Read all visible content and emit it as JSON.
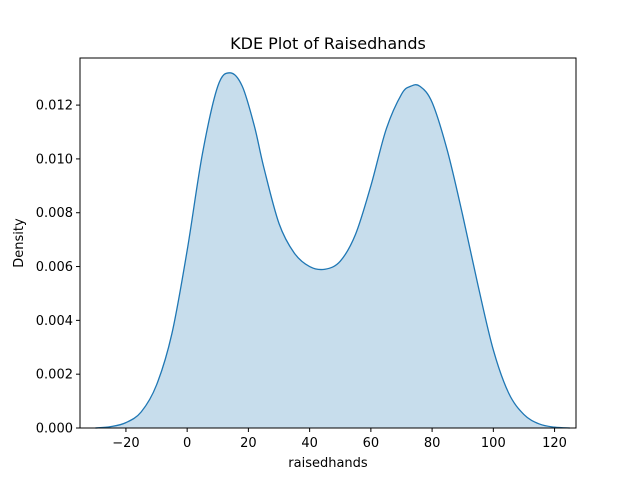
{
  "chart_data": {
    "type": "area",
    "title": "KDE Plot of Raisedhands",
    "xlabel": "raisedhands",
    "ylabel": "Density",
    "xlim": [
      -35,
      127
    ],
    "ylim": [
      0,
      0.01375
    ],
    "xticks": [
      -20,
      0,
      20,
      40,
      60,
      80,
      100,
      120
    ],
    "xtick_labels": [
      "−20",
      "0",
      "20",
      "40",
      "60",
      "80",
      "100",
      "120"
    ],
    "yticks": [
      0.0,
      0.002,
      0.004,
      0.006,
      0.008,
      0.01,
      0.012
    ],
    "ytick_labels": [
      "0.000",
      "0.002",
      "0.004",
      "0.006",
      "0.008",
      "0.010",
      "0.012"
    ],
    "grid": false,
    "line_color": "#1f77b4",
    "fill_color": "#1f77b4",
    "fill_opacity": 0.25,
    "x": [
      -30,
      -25,
      -20,
      -15,
      -10,
      -5,
      0,
      5,
      10,
      14,
      18,
      22,
      25,
      30,
      35,
      40,
      45,
      50,
      55,
      60,
      65,
      70,
      73,
      76,
      80,
      85,
      90,
      95,
      100,
      105,
      110,
      115,
      120,
      125
    ],
    "y": [
      0.0,
      5e-05,
      0.0002,
      0.0006,
      0.0016,
      0.0035,
      0.0066,
      0.0102,
      0.0127,
      0.0132,
      0.0127,
      0.0112,
      0.0097,
      0.0076,
      0.0065,
      0.006,
      0.0059,
      0.0062,
      0.0072,
      0.009,
      0.0111,
      0.0124,
      0.0127,
      0.0127,
      0.0121,
      0.0103,
      0.0079,
      0.0053,
      0.0029,
      0.0013,
      0.0005,
      0.00015,
      3e-05,
      0.0
    ]
  }
}
